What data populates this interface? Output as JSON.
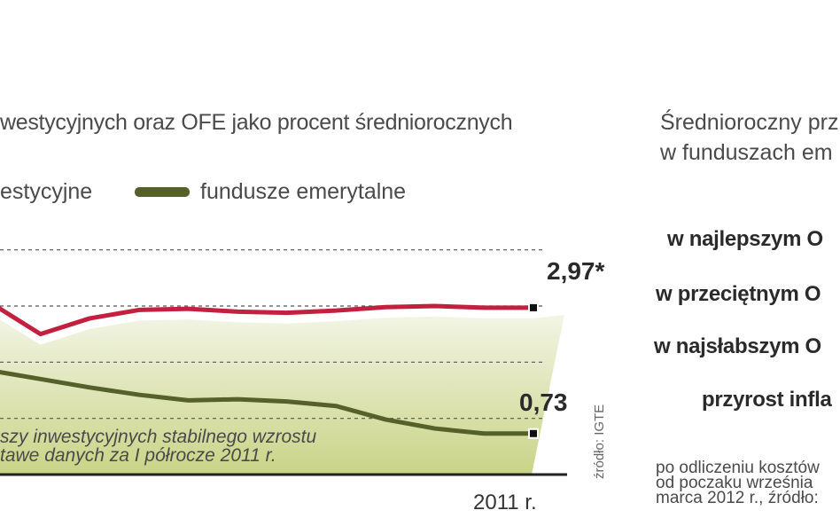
{
  "chart_data": {
    "type": "line",
    "title": "",
    "subtitle": "westycyjnych oraz OFE jako procent średniorocznych",
    "legend": [
      "estycyjne",
      "fundusze emerytalne"
    ],
    "series": [
      {
        "name": "estycyjne",
        "color": "#c3203f",
        "x": [
          0,
          1,
          2,
          3,
          4,
          5,
          6,
          7,
          8,
          9,
          10,
          11
        ],
        "values": [
          3.05,
          2.5,
          2.78,
          2.93,
          2.95,
          2.9,
          2.88,
          2.92,
          2.98,
          3.0,
          2.97,
          2.97
        ]
      },
      {
        "name": "fundusze emerytalne",
        "color": "#55602a",
        "x": [
          0,
          1,
          2,
          3,
          4,
          5,
          6,
          7,
          8,
          9,
          10,
          11
        ],
        "values": [
          1.85,
          1.7,
          1.55,
          1.42,
          1.32,
          1.34,
          1.3,
          1.22,
          0.98,
          0.82,
          0.73,
          0.73
        ]
      }
    ],
    "end_labels": [
      "2,97*",
      "0,73"
    ],
    "note_lines": [
      "szy inwestycyjnych stabilnego wzrostu",
      "tawe danych za I półrocze 2011 r."
    ],
    "x_tick_label": "2011 r.",
    "source": "źródło: IGTE",
    "ylim": [
      0,
      4.5
    ],
    "grid": true,
    "area_color": "#dfe6b4"
  },
  "right_panel": {
    "title_lines": [
      "Średnioroczny prz",
      "w funduszach em"
    ],
    "rows": [
      "w najlepszym O",
      "w przeciętnym O",
      "w najsłabszym O",
      "przyrost infla"
    ],
    "footnote_lines": [
      "po odliczeniu kosztów",
      "od poczaku września",
      "marca 2012 r., źródło:"
    ]
  }
}
